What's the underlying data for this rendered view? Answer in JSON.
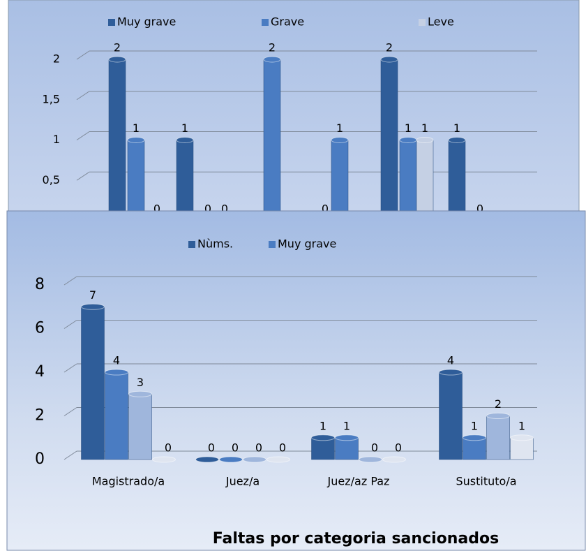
{
  "charts": [
    {
      "chart_data": {
        "type": "bar",
        "series": [
          {
            "name": "Muy grave",
            "color": "#2f5d99",
            "values": [
              2,
              1,
              null,
              0,
              2,
              1
            ]
          },
          {
            "name": "Grave",
            "color": "#4a7cc2",
            "values": [
              1,
              0,
              2,
              1,
              1,
              0
            ]
          },
          {
            "name": "Leve",
            "color": "#c5d0e4",
            "values": [
              0,
              0,
              null,
              null,
              1,
              null
            ]
          }
        ],
        "ylim": [
          0,
          2
        ],
        "yticks": [
          {
            "value": 0.5,
            "label": "0,5"
          },
          1,
          {
            "value": 1.5,
            "label": "1,5"
          },
          2
        ],
        "grid": true
      }
    },
    {
      "chart_data": {
        "type": "bar",
        "title": "Faltas  por categoria sancionados",
        "categories": [
          "Magistrado/a",
          "Juez/a",
          "Juez/az Paz",
          "Sustituto/a"
        ],
        "series": [
          {
            "name": "Nùms.",
            "color": "#2f5d99",
            "values": [
              7,
              0,
              1,
              4
            ]
          },
          {
            "name": "Muy grave",
            "color": "#4a7cc2",
            "values": [
              4,
              0,
              1,
              1
            ]
          },
          {
            "color": "#9fb6dc",
            "values": [
              3,
              0,
              0,
              2
            ]
          },
          {
            "color": "#dfe5f0",
            "values": [
              0,
              0,
              0,
              1
            ]
          }
        ],
        "ylim": [
          0,
          8
        ],
        "yticks": [
          0,
          2,
          4,
          6,
          8
        ],
        "grid": true
      }
    }
  ]
}
